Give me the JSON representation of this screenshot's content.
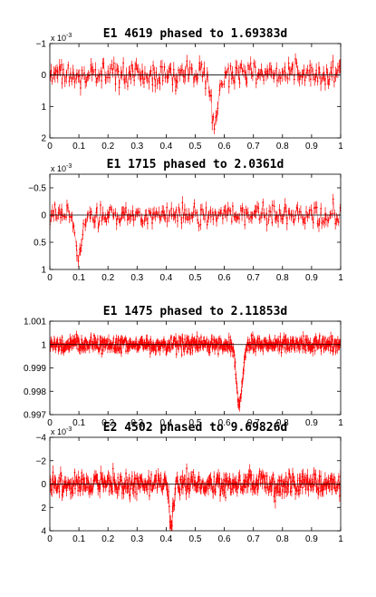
{
  "figure": {
    "background": "#ffffff",
    "data_color": "#ff0000",
    "model_color": "#000000"
  },
  "chart_data": [
    {
      "type": "scatter",
      "title": "E1 4619 phased to 1.69383d",
      "multiplier": "x 10",
      "multiplier_exp": "-3",
      "xlim": [
        0,
        1
      ],
      "ylim": [
        2,
        -1
      ],
      "y_reversed": true,
      "xticks": [
        "0",
        "0.1",
        "0.2",
        "0.3",
        "0.4",
        "0.5",
        "0.6",
        "0.7",
        "0.8",
        "0.9",
        "1"
      ],
      "yticks": [
        -1,
        0,
        1,
        2
      ],
      "ytick_labels": [
        "−1",
        "0",
        "1",
        "2"
      ],
      "baseline": 0,
      "noise": 0.28,
      "err": 0.18,
      "n_points": 260,
      "dips": [
        {
          "center": 0.568,
          "width": 0.012,
          "depth": 1.6
        }
      ]
    },
    {
      "type": "scatter",
      "title": "E1 1715 phased to 2.0361d",
      "multiplier": "x 10",
      "multiplier_exp": "-3",
      "xlim": [
        0,
        1
      ],
      "ylim": [
        1,
        -0.75
      ],
      "y_reversed": true,
      "xticks": [
        "0",
        "0.1",
        "0.2",
        "0.3",
        "0.4",
        "0.5",
        "0.6",
        "0.7",
        "0.8",
        "0.9",
        "1"
      ],
      "yticks": [
        -0.5,
        0,
        0.5,
        1
      ],
      "ytick_labels": [
        "−0.5",
        "0",
        "0.5",
        "1"
      ],
      "baseline": 0,
      "noise": 0.14,
      "err": 0.09,
      "n_points": 260,
      "dips": [
        {
          "center": 0.098,
          "width": 0.012,
          "depth": 0.75
        }
      ]
    },
    {
      "type": "scatter",
      "title": "E1 1475 phased to 2.11853d",
      "multiplier": "",
      "multiplier_exp": "",
      "xlim": [
        0,
        1
      ],
      "ylim": [
        0.997,
        1.001
      ],
      "y_reversed": false,
      "xticks": [
        "0",
        "0.1",
        "0.2",
        "0.3",
        "0.4",
        "0.5",
        "0.6",
        "0.7",
        "0.8",
        "0.9",
        "1"
      ],
      "yticks": [
        0.997,
        0.998,
        0.999,
        1,
        1.001
      ],
      "ytick_labels": [
        "0.997",
        "0.998",
        "0.999",
        "1",
        "1.001"
      ],
      "baseline": 1,
      "noise": 0.00022,
      "err": 0.00016,
      "n_points": 700,
      "dips": [
        {
          "center": 0.652,
          "width": 0.01,
          "depth": 0.0026
        }
      ]
    },
    {
      "type": "scatter",
      "title": "E2 4502 phased to 9.69826d",
      "multiplier": "x 10",
      "multiplier_exp": "-3",
      "xlim": [
        0,
        1
      ],
      "ylim": [
        4,
        -4
      ],
      "y_reversed": true,
      "xticks": [
        "0",
        "0.1",
        "0.2",
        "0.3",
        "0.4",
        "0.5",
        "0.6",
        "0.7",
        "0.8",
        "0.9",
        "1"
      ],
      "yticks": [
        -4,
        -2,
        0,
        2,
        4
      ],
      "ytick_labels": [
        "−4",
        "−2",
        "0",
        "2",
        "4"
      ],
      "baseline": 0,
      "noise": 0.65,
      "err": 0.45,
      "n_points": 520,
      "dips": [
        {
          "center": 0.418,
          "width": 0.007,
          "depth": 3.4
        }
      ]
    }
  ]
}
